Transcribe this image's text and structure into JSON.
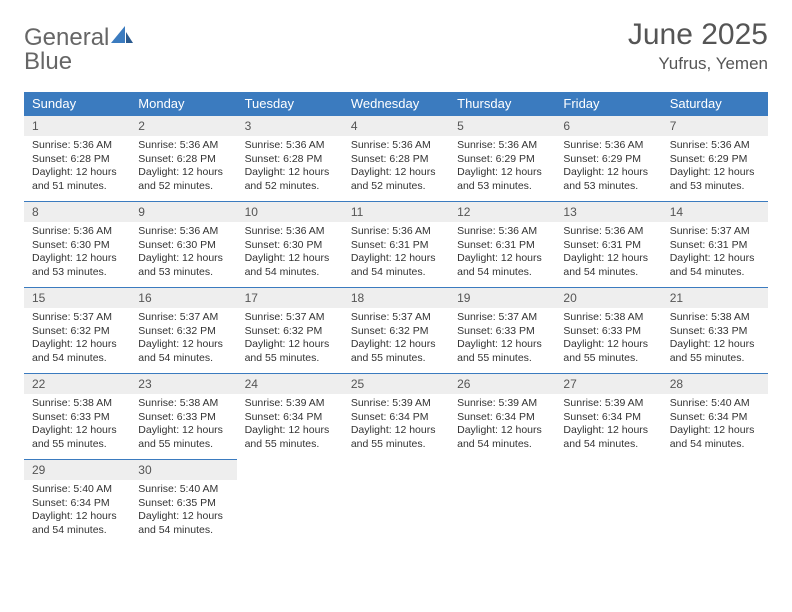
{
  "logo": {
    "text_general": "General",
    "text_blue": "Blue"
  },
  "title": "June 2025",
  "location": "Yufrus, Yemen",
  "header_bg": "#3b7bbf",
  "header_fg": "#ffffff",
  "daynum_bg": "#eeeeee",
  "divider_color": "#3b7bbf",
  "weekdays": [
    "Sunday",
    "Monday",
    "Tuesday",
    "Wednesday",
    "Thursday",
    "Friday",
    "Saturday"
  ],
  "weeks": [
    [
      {
        "n": "1",
        "sr": "Sunrise: 5:36 AM",
        "ss": "Sunset: 6:28 PM",
        "d1": "Daylight: 12 hours",
        "d2": "and 51 minutes."
      },
      {
        "n": "2",
        "sr": "Sunrise: 5:36 AM",
        "ss": "Sunset: 6:28 PM",
        "d1": "Daylight: 12 hours",
        "d2": "and 52 minutes."
      },
      {
        "n": "3",
        "sr": "Sunrise: 5:36 AM",
        "ss": "Sunset: 6:28 PM",
        "d1": "Daylight: 12 hours",
        "d2": "and 52 minutes."
      },
      {
        "n": "4",
        "sr": "Sunrise: 5:36 AM",
        "ss": "Sunset: 6:28 PM",
        "d1": "Daylight: 12 hours",
        "d2": "and 52 minutes."
      },
      {
        "n": "5",
        "sr": "Sunrise: 5:36 AM",
        "ss": "Sunset: 6:29 PM",
        "d1": "Daylight: 12 hours",
        "d2": "and 53 minutes."
      },
      {
        "n": "6",
        "sr": "Sunrise: 5:36 AM",
        "ss": "Sunset: 6:29 PM",
        "d1": "Daylight: 12 hours",
        "d2": "and 53 minutes."
      },
      {
        "n": "7",
        "sr": "Sunrise: 5:36 AM",
        "ss": "Sunset: 6:29 PM",
        "d1": "Daylight: 12 hours",
        "d2": "and 53 minutes."
      }
    ],
    [
      {
        "n": "8",
        "sr": "Sunrise: 5:36 AM",
        "ss": "Sunset: 6:30 PM",
        "d1": "Daylight: 12 hours",
        "d2": "and 53 minutes."
      },
      {
        "n": "9",
        "sr": "Sunrise: 5:36 AM",
        "ss": "Sunset: 6:30 PM",
        "d1": "Daylight: 12 hours",
        "d2": "and 53 minutes."
      },
      {
        "n": "10",
        "sr": "Sunrise: 5:36 AM",
        "ss": "Sunset: 6:30 PM",
        "d1": "Daylight: 12 hours",
        "d2": "and 54 minutes."
      },
      {
        "n": "11",
        "sr": "Sunrise: 5:36 AM",
        "ss": "Sunset: 6:31 PM",
        "d1": "Daylight: 12 hours",
        "d2": "and 54 minutes."
      },
      {
        "n": "12",
        "sr": "Sunrise: 5:36 AM",
        "ss": "Sunset: 6:31 PM",
        "d1": "Daylight: 12 hours",
        "d2": "and 54 minutes."
      },
      {
        "n": "13",
        "sr": "Sunrise: 5:36 AM",
        "ss": "Sunset: 6:31 PM",
        "d1": "Daylight: 12 hours",
        "d2": "and 54 minutes."
      },
      {
        "n": "14",
        "sr": "Sunrise: 5:37 AM",
        "ss": "Sunset: 6:31 PM",
        "d1": "Daylight: 12 hours",
        "d2": "and 54 minutes."
      }
    ],
    [
      {
        "n": "15",
        "sr": "Sunrise: 5:37 AM",
        "ss": "Sunset: 6:32 PM",
        "d1": "Daylight: 12 hours",
        "d2": "and 54 minutes."
      },
      {
        "n": "16",
        "sr": "Sunrise: 5:37 AM",
        "ss": "Sunset: 6:32 PM",
        "d1": "Daylight: 12 hours",
        "d2": "and 54 minutes."
      },
      {
        "n": "17",
        "sr": "Sunrise: 5:37 AM",
        "ss": "Sunset: 6:32 PM",
        "d1": "Daylight: 12 hours",
        "d2": "and 55 minutes."
      },
      {
        "n": "18",
        "sr": "Sunrise: 5:37 AM",
        "ss": "Sunset: 6:32 PM",
        "d1": "Daylight: 12 hours",
        "d2": "and 55 minutes."
      },
      {
        "n": "19",
        "sr": "Sunrise: 5:37 AM",
        "ss": "Sunset: 6:33 PM",
        "d1": "Daylight: 12 hours",
        "d2": "and 55 minutes."
      },
      {
        "n": "20",
        "sr": "Sunrise: 5:38 AM",
        "ss": "Sunset: 6:33 PM",
        "d1": "Daylight: 12 hours",
        "d2": "and 55 minutes."
      },
      {
        "n": "21",
        "sr": "Sunrise: 5:38 AM",
        "ss": "Sunset: 6:33 PM",
        "d1": "Daylight: 12 hours",
        "d2": "and 55 minutes."
      }
    ],
    [
      {
        "n": "22",
        "sr": "Sunrise: 5:38 AM",
        "ss": "Sunset: 6:33 PM",
        "d1": "Daylight: 12 hours",
        "d2": "and 55 minutes."
      },
      {
        "n": "23",
        "sr": "Sunrise: 5:38 AM",
        "ss": "Sunset: 6:33 PM",
        "d1": "Daylight: 12 hours",
        "d2": "and 55 minutes."
      },
      {
        "n": "24",
        "sr": "Sunrise: 5:39 AM",
        "ss": "Sunset: 6:34 PM",
        "d1": "Daylight: 12 hours",
        "d2": "and 55 minutes."
      },
      {
        "n": "25",
        "sr": "Sunrise: 5:39 AM",
        "ss": "Sunset: 6:34 PM",
        "d1": "Daylight: 12 hours",
        "d2": "and 55 minutes."
      },
      {
        "n": "26",
        "sr": "Sunrise: 5:39 AM",
        "ss": "Sunset: 6:34 PM",
        "d1": "Daylight: 12 hours",
        "d2": "and 54 minutes."
      },
      {
        "n": "27",
        "sr": "Sunrise: 5:39 AM",
        "ss": "Sunset: 6:34 PM",
        "d1": "Daylight: 12 hours",
        "d2": "and 54 minutes."
      },
      {
        "n": "28",
        "sr": "Sunrise: 5:40 AM",
        "ss": "Sunset: 6:34 PM",
        "d1": "Daylight: 12 hours",
        "d2": "and 54 minutes."
      }
    ],
    [
      {
        "n": "29",
        "sr": "Sunrise: 5:40 AM",
        "ss": "Sunset: 6:34 PM",
        "d1": "Daylight: 12 hours",
        "d2": "and 54 minutes."
      },
      {
        "n": "30",
        "sr": "Sunrise: 5:40 AM",
        "ss": "Sunset: 6:35 PM",
        "d1": "Daylight: 12 hours",
        "d2": "and 54 minutes."
      },
      null,
      null,
      null,
      null,
      null
    ]
  ]
}
